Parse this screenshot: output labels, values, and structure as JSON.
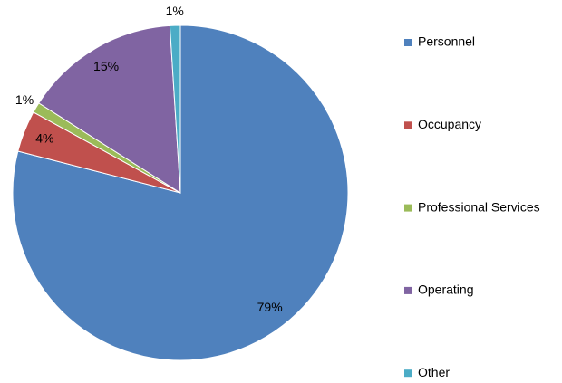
{
  "chart_data": {
    "type": "pie",
    "categories": [
      "Personnel",
      "Occupancy",
      "Professional Services",
      "Operating",
      "Other"
    ],
    "values": [
      79,
      4,
      1,
      15,
      1
    ],
    "value_labels": [
      "79%",
      "4%",
      "1%",
      "15%",
      "1%"
    ],
    "colors": [
      "#4f81bd",
      "#c0504d",
      "#9bbb59",
      "#8064a2",
      "#4bacc6"
    ],
    "legend": "right"
  }
}
